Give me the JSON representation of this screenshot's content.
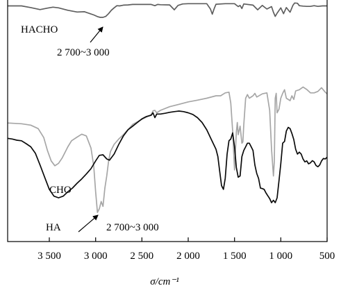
{
  "chart_data": {
    "type": "line",
    "title": "",
    "xlabel": "σ/cm⁻¹",
    "ylabel": "",
    "x_reversed": true,
    "xlim": [
      3950,
      500
    ],
    "x_ticks": [
      3500,
      3000,
      2500,
      2000,
      1500,
      1000,
      500
    ],
    "x_tick_labels": [
      "3 500",
      "3 000",
      "2 500",
      "2 000",
      "1 500",
      "1 000",
      "500"
    ],
    "y_ticks_shown": false,
    "ylim": [
      0,
      100
    ],
    "grid": false,
    "legend": "none",
    "series": [
      {
        "name": "HACHO",
        "color": "#5e5e5e",
        "x": [
          3950,
          3800,
          3700,
          3600,
          3520,
          3460,
          3400,
          3300,
          3200,
          3120,
          3060,
          3020,
          2980,
          2950,
          2920,
          2890,
          2860,
          2830,
          2800,
          2770,
          2740,
          2700,
          2650,
          2600,
          2500,
          2400,
          2360,
          2330,
          2300,
          2200,
          2150,
          2110,
          2060,
          2000,
          1900,
          1800,
          1760,
          1740,
          1720,
          1700,
          1600,
          1500,
          1460,
          1440,
          1420,
          1400,
          1300,
          1250,
          1200,
          1150,
          1100,
          1080,
          1060,
          1040,
          1000,
          970,
          940,
          900,
          870,
          850,
          820,
          800,
          760,
          720,
          680,
          640,
          600,
          550,
          500
        ],
        "y": [
          97,
          97,
          96.3,
          95.5,
          96.1,
          96.5,
          96.2,
          95.2,
          94.5,
          94.6,
          93.8,
          93.3,
          92.6,
          92.3,
          92.3,
          92.7,
          93.8,
          95.2,
          96.2,
          97.1,
          97,
          97.3,
          97.4,
          97.6,
          97.6,
          97.6,
          97.1,
          97.6,
          97.5,
          97.4,
          95.4,
          97.2,
          97.8,
          97.9,
          97.9,
          97.9,
          95.7,
          93.6,
          95.8,
          97.7,
          97.9,
          97.9,
          96.7,
          97.2,
          95.9,
          97.8,
          97.3,
          95.4,
          97.2,
          95.7,
          96.7,
          94.4,
          92.7,
          94,
          96.2,
          93.8,
          96.3,
          94.4,
          97.2,
          98.2,
          98.1,
          97.1,
          96.9,
          96.8,
          96.8,
          97.1,
          96.8,
          97,
          97
        ]
      },
      {
        "name": "CHO",
        "color": "#a6a6a6",
        "x": [
          3950,
          3800,
          3700,
          3620,
          3560,
          3520,
          3480,
          3440,
          3400,
          3360,
          3300,
          3260,
          3200,
          3150,
          3100,
          3080,
          3050,
          3020,
          3000,
          2980,
          2960,
          2940,
          2920,
          2900,
          2880,
          2860,
          2840,
          2800,
          2750,
          2700,
          2600,
          2500,
          2400,
          2380,
          2360,
          2340,
          2300,
          2200,
          2100,
          2000,
          1900,
          1800,
          1700,
          1650,
          1600,
          1560,
          1540,
          1520,
          1500,
          1480,
          1470,
          1460,
          1440,
          1420,
          1410,
          1400,
          1380,
          1360,
          1340,
          1300,
          1280,
          1260,
          1200,
          1150,
          1120,
          1100,
          1080,
          1070,
          1060,
          1050,
          1040,
          1020,
          1000,
          980,
          960,
          940,
          900,
          880,
          860,
          840,
          800,
          760,
          720,
          680,
          640,
          600,
          560,
          520,
          500
        ],
        "y": [
          48.8,
          48.5,
          47.9,
          46.5,
          42.8,
          37.5,
          33.2,
          31.2,
          32.2,
          34.5,
          39,
          41.5,
          43,
          44.2,
          43.5,
          41.5,
          38.5,
          31,
          20.5,
          12,
          13.5,
          16.5,
          14.5,
          22,
          27,
          33,
          37,
          40,
          42.2,
          44,
          48.2,
          50.3,
          52.2,
          53.8,
          54,
          53,
          54,
          55.5,
          56.5,
          57.5,
          58.2,
          59,
          60,
          60,
          61.2,
          61.5,
          57,
          45.5,
          29.5,
          45,
          49,
          44,
          47.5,
          40.5,
          41,
          48,
          59,
          60.5,
          59,
          60,
          61,
          59.5,
          60.8,
          61.2,
          54,
          38,
          27,
          33,
          59,
          61,
          53,
          54.5,
          59,
          61,
          62.5,
          59,
          58,
          60,
          58.5,
          62,
          62.5,
          63.6,
          62.6,
          61.2,
          61.2,
          61.8,
          63.3,
          61.5,
          60.8
        ]
      },
      {
        "name": "HA",
        "color": "#0a0a0a",
        "x": [
          3950,
          3900,
          3850,
          3800,
          3750,
          3700,
          3650,
          3600,
          3550,
          3500,
          3450,
          3400,
          3350,
          3300,
          3250,
          3200,
          3150,
          3100,
          3050,
          3000,
          2960,
          2920,
          2880,
          2850,
          2800,
          2750,
          2700,
          2650,
          2600,
          2550,
          2500,
          2450,
          2400,
          2380,
          2360,
          2340,
          2300,
          2250,
          2200,
          2150,
          2100,
          2050,
          2000,
          1950,
          1900,
          1850,
          1800,
          1750,
          1700,
          1680,
          1660,
          1640,
          1620,
          1600,
          1580,
          1560,
          1540,
          1520,
          1500,
          1480,
          1460,
          1440,
          1420,
          1400,
          1380,
          1360,
          1340,
          1320,
          1300,
          1280,
          1260,
          1240,
          1220,
          1200,
          1180,
          1160,
          1140,
          1120,
          1100,
          1080,
          1060,
          1040,
          1020,
          1000,
          980,
          960,
          940,
          920,
          900,
          880,
          860,
          840,
          820,
          800,
          780,
          760,
          740,
          720,
          700,
          680,
          660,
          640,
          620,
          600,
          580,
          560,
          540,
          520,
          500
        ],
        "y": [
          42.5,
          42.2,
          41.7,
          41.5,
          40.3,
          39,
          36.3,
          31.5,
          26.5,
          21.5,
          18.7,
          18,
          18.7,
          20.5,
          22,
          24,
          25.8,
          27.8,
          30,
          33.2,
          35.5,
          35.7,
          34,
          33.5,
          36,
          40,
          43.5,
          46,
          47.5,
          49,
          50.5,
          51.5,
          52,
          53,
          51,
          52.5,
          52.5,
          52.8,
          53.2,
          53.5,
          53.7,
          53.5,
          53,
          52.3,
          51,
          49,
          46,
          42,
          38,
          35,
          29,
          23,
          21.5,
          26,
          36,
          41.5,
          42.2,
          44.7,
          39,
          30.5,
          26.5,
          27,
          35,
          37.5,
          39,
          40.5,
          40.5,
          39,
          37.5,
          31.5,
          28,
          26,
          22,
          21.8,
          21.5,
          20,
          18.8,
          17.7,
          16,
          17,
          16,
          18,
          25,
          32,
          40.5,
          41.2,
          45.5,
          47,
          46.5,
          44.5,
          42,
          38,
          36,
          36.8,
          36,
          34,
          32.8,
          33.2,
          32,
          32.4,
          33.3,
          32.8,
          31.3,
          30.8,
          31.5,
          33.2,
          34.2,
          34,
          34.7
        ]
      }
    ],
    "labels": {
      "hacho": "HACHO",
      "cho": "CHO",
      "ha": "HA"
    },
    "annotations": [
      {
        "text": "2 700~3 000"
      },
      {
        "text": "2 700~3 000"
      }
    ]
  }
}
